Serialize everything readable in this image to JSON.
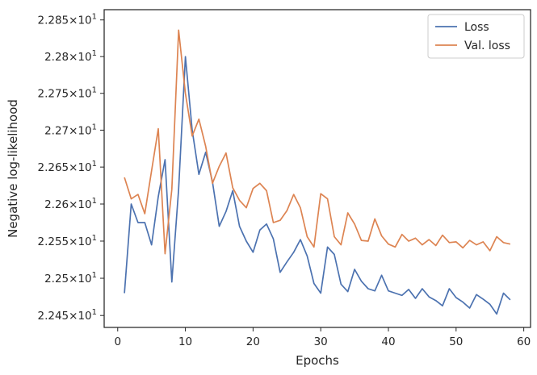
{
  "chart_data": {
    "type": "line",
    "xlabel": "Epochs",
    "ylabel": "Negative log-likelihood",
    "xlim": [
      -2,
      61
    ],
    "ylim": [
      22.434,
      22.864
    ],
    "y_scale": "log",
    "grid": false,
    "legend_placement": "top-right",
    "x_ticks": [
      0,
      10,
      20,
      30,
      40,
      50,
      60
    ],
    "x_tick_labels": [
      "0",
      "10",
      "20",
      "30",
      "40",
      "50",
      "60"
    ],
    "y_ticks": [
      22.45,
      22.5,
      22.55,
      22.6,
      22.65,
      22.7,
      22.75,
      22.8,
      22.85
    ],
    "y_tick_labels": [
      {
        "mantissa": "2.245",
        "base": "10",
        "exp": "1"
      },
      {
        "mantissa": "2.25",
        "base": "10",
        "exp": "1"
      },
      {
        "mantissa": "2.255",
        "base": "10",
        "exp": "1"
      },
      {
        "mantissa": "2.26",
        "base": "10",
        "exp": "1"
      },
      {
        "mantissa": "2.265",
        "base": "10",
        "exp": "1"
      },
      {
        "mantissa": "2.27",
        "base": "10",
        "exp": "1"
      },
      {
        "mantissa": "2.275",
        "base": "10",
        "exp": "1"
      },
      {
        "mantissa": "2.28",
        "base": "10",
        "exp": "1"
      },
      {
        "mantissa": "2.285",
        "base": "10",
        "exp": "1"
      }
    ],
    "x": [
      1,
      2,
      3,
      4,
      5,
      6,
      7,
      8,
      9,
      10,
      11,
      12,
      13,
      14,
      15,
      16,
      17,
      18,
      19,
      20,
      21,
      22,
      23,
      24,
      25,
      26,
      27,
      28,
      29,
      30,
      31,
      32,
      33,
      34,
      35,
      36,
      37,
      38,
      39,
      40,
      41,
      42,
      43,
      44,
      45,
      46,
      47,
      48,
      49,
      50,
      51,
      52,
      53,
      54,
      55,
      56,
      57,
      58
    ],
    "series": [
      {
        "name": "Loss",
        "color": "#4c72b0",
        "values": [
          22.48,
          22.6,
          22.575,
          22.575,
          22.545,
          22.61,
          22.66,
          22.495,
          22.62,
          22.8,
          22.7,
          22.64,
          22.67,
          22.63,
          22.57,
          22.59,
          22.618,
          22.57,
          22.55,
          22.535,
          22.565,
          22.573,
          22.553,
          22.508,
          22.522,
          22.535,
          22.552,
          22.53,
          22.493,
          22.48,
          22.542,
          22.532,
          22.492,
          22.482,
          22.512,
          22.496,
          22.486,
          22.483,
          22.504,
          22.483,
          22.48,
          22.477,
          22.485,
          22.473,
          22.486,
          22.475,
          22.47,
          22.463,
          22.486,
          22.474,
          22.468,
          22.46,
          22.478,
          22.472,
          22.465,
          22.452,
          22.48,
          22.471
        ]
      },
      {
        "name": "Val. loss",
        "color": "#dd8452",
        "values": [
          22.636,
          22.607,
          22.613,
          22.587,
          22.645,
          22.702,
          22.533,
          22.62,
          22.836,
          22.75,
          22.692,
          22.715,
          22.678,
          22.628,
          22.651,
          22.669,
          22.622,
          22.605,
          22.595,
          22.621,
          22.628,
          22.618,
          22.575,
          22.578,
          22.591,
          22.613,
          22.595,
          22.556,
          22.542,
          22.614,
          22.607,
          22.556,
          22.545,
          22.588,
          22.573,
          22.551,
          22.55,
          22.58,
          22.557,
          22.546,
          22.542,
          22.559,
          22.55,
          22.554,
          22.545,
          22.552,
          22.544,
          22.558,
          22.548,
          22.549,
          22.541,
          22.551,
          22.545,
          22.549,
          22.537,
          22.556,
          22.548,
          22.546
        ]
      }
    ]
  }
}
